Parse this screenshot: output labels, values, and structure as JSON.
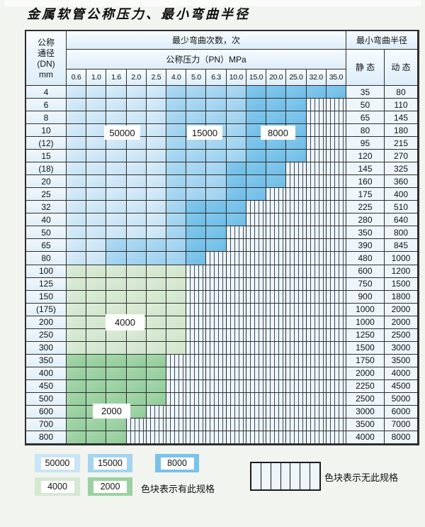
{
  "title": "金属软管公称压力、最小弯曲半径",
  "colors": {
    "blue_50000": "#c9e5f6",
    "blue_15000": "#a3d4f0",
    "blue_8000": "#79c2ea",
    "green_4000": "#d6e8d2",
    "green_2000": "#9bd1a2",
    "stripe_bg": "#eef5fb",
    "stripe_line": "#3d4d59",
    "grid_line": "#2e2e2e"
  },
  "table": {
    "corner_header_lines": [
      "公称",
      "通径",
      "(DN)",
      "mm"
    ],
    "bend_cycles_header": "最少弯曲次数，次",
    "pressure_header": "公称压力（PN）MPa",
    "pressure_columns": [
      "0.6",
      "1.0",
      "1.6",
      "2.0",
      "2.5",
      "4.0",
      "5.0",
      "6.3",
      "10.0",
      "15.0",
      "20.0",
      "25.0",
      "32.0",
      "35.0"
    ],
    "radius_header": "最小弯曲半径",
    "static_header": "静 态",
    "dynamic_header": "动 态",
    "rows": [
      {
        "dn": "4",
        "bands": [
          [
            "blue_50000",
            5
          ],
          [
            "blue_15000",
            4
          ],
          [
            "blue_8000",
            5
          ]
        ],
        "static": "35",
        "dynamic": "80"
      },
      {
        "dn": "6",
        "bands": [
          [
            "blue_50000",
            5
          ],
          [
            "blue_15000",
            4
          ],
          [
            "blue_8000",
            3
          ]
        ],
        "static": "50",
        "dynamic": "110"
      },
      {
        "dn": "8",
        "bands": [
          [
            "blue_50000",
            5
          ],
          [
            "blue_15000",
            4
          ],
          [
            "blue_8000",
            3
          ]
        ],
        "static": "65",
        "dynamic": "145"
      },
      {
        "dn": "10",
        "bands": [
          [
            "blue_50000",
            5
          ],
          [
            "blue_15000",
            4
          ],
          [
            "blue_8000",
            3
          ]
        ],
        "static": "80",
        "dynamic": "180"
      },
      {
        "dn": "(12)",
        "bands": [
          [
            "blue_50000",
            5
          ],
          [
            "blue_15000",
            4
          ],
          [
            "blue_8000",
            3
          ]
        ],
        "static": "95",
        "dynamic": "215"
      },
      {
        "dn": "15",
        "bands": [
          [
            "blue_50000",
            5
          ],
          [
            "blue_15000",
            4
          ],
          [
            "blue_8000",
            3
          ]
        ],
        "static": "120",
        "dynamic": "270"
      },
      {
        "dn": "(18)",
        "bands": [
          [
            "blue_50000",
            5
          ],
          [
            "blue_15000",
            3
          ],
          [
            "blue_8000",
            3
          ]
        ],
        "static": "145",
        "dynamic": "325"
      },
      {
        "dn": "20",
        "bands": [
          [
            "blue_50000",
            5
          ],
          [
            "blue_15000",
            3
          ],
          [
            "blue_8000",
            3
          ]
        ],
        "static": "160",
        "dynamic": "360"
      },
      {
        "dn": "25",
        "bands": [
          [
            "blue_50000",
            5
          ],
          [
            "blue_15000",
            3
          ],
          [
            "blue_8000",
            2
          ]
        ],
        "static": "175",
        "dynamic": "400"
      },
      {
        "dn": "32",
        "bands": [
          [
            "blue_50000",
            5
          ],
          [
            "blue_15000",
            1
          ],
          [
            "blue_8000",
            3
          ]
        ],
        "static": "225",
        "dynamic": "510"
      },
      {
        "dn": "40",
        "bands": [
          [
            "blue_50000",
            5
          ],
          [
            "blue_15000",
            1
          ],
          [
            "blue_8000",
            3
          ]
        ],
        "static": "280",
        "dynamic": "640"
      },
      {
        "dn": "50",
        "bands": [
          [
            "blue_50000",
            5
          ],
          [
            "blue_15000",
            1
          ],
          [
            "blue_8000",
            2
          ]
        ],
        "static": "350",
        "dynamic": "800"
      },
      {
        "dn": "65",
        "bands": [
          [
            "blue_50000",
            2
          ],
          [
            "blue_15000",
            4
          ],
          [
            "blue_8000",
            2
          ]
        ],
        "static": "390",
        "dynamic": "845"
      },
      {
        "dn": "80",
        "bands": [
          [
            "blue_50000",
            2
          ],
          [
            "blue_15000",
            4
          ],
          [
            "blue_8000",
            1
          ]
        ],
        "static": "480",
        "dynamic": "1000"
      },
      {
        "dn": "100",
        "bands": [
          [
            "green_4000",
            6
          ]
        ],
        "static": "600",
        "dynamic": "1200"
      },
      {
        "dn": "125",
        "bands": [
          [
            "green_4000",
            6
          ]
        ],
        "static": "750",
        "dynamic": "1500"
      },
      {
        "dn": "150",
        "bands": [
          [
            "green_4000",
            6
          ]
        ],
        "static": "900",
        "dynamic": "1800"
      },
      {
        "dn": "(175)",
        "bands": [
          [
            "green_4000",
            6
          ]
        ],
        "static": "1000",
        "dynamic": "2000"
      },
      {
        "dn": "200",
        "bands": [
          [
            "green_4000",
            6
          ]
        ],
        "static": "1000",
        "dynamic": "2000"
      },
      {
        "dn": "250",
        "bands": [
          [
            "green_4000",
            6
          ]
        ],
        "static": "1250",
        "dynamic": "2500"
      },
      {
        "dn": "300",
        "bands": [
          [
            "green_4000",
            6
          ]
        ],
        "static": "1500",
        "dynamic": "3000"
      },
      {
        "dn": "350",
        "bands": [
          [
            "green_2000",
            5
          ]
        ],
        "static": "1750",
        "dynamic": "3500"
      },
      {
        "dn": "400",
        "bands": [
          [
            "green_2000",
            5
          ]
        ],
        "static": "2000",
        "dynamic": "4000"
      },
      {
        "dn": "450",
        "bands": [
          [
            "green_2000",
            5
          ]
        ],
        "static": "2250",
        "dynamic": "4500"
      },
      {
        "dn": "500",
        "bands": [
          [
            "green_2000",
            5
          ]
        ],
        "static": "2500",
        "dynamic": "5000"
      },
      {
        "dn": "600",
        "bands": [
          [
            "green_2000",
            4
          ]
        ],
        "static": "3000",
        "dynamic": "6000"
      },
      {
        "dn": "700",
        "bands": [
          [
            "green_2000",
            3
          ]
        ],
        "static": "3500",
        "dynamic": "7000"
      },
      {
        "dn": "800",
        "bands": [
          [
            "green_2000",
            3
          ]
        ],
        "static": "4000",
        "dynamic": "8000"
      }
    ]
  },
  "zone_labels": [
    {
      "text": "50000"
    },
    {
      "text": "15000"
    },
    {
      "text": "8000"
    },
    {
      "text": "4000"
    },
    {
      "text": "2000"
    }
  ],
  "legend": {
    "swatches": [
      {
        "label": "50000",
        "color": "blue_50000"
      },
      {
        "label": "15000",
        "color": "blue_15000"
      },
      {
        "label": "8000",
        "color": "blue_8000"
      },
      {
        "label": "4000",
        "color": "green_4000"
      },
      {
        "label": "2000",
        "color": "green_2000"
      }
    ],
    "has_spec_note": "色块表示有此规格",
    "no_spec_note": "色块表示无此规格"
  }
}
